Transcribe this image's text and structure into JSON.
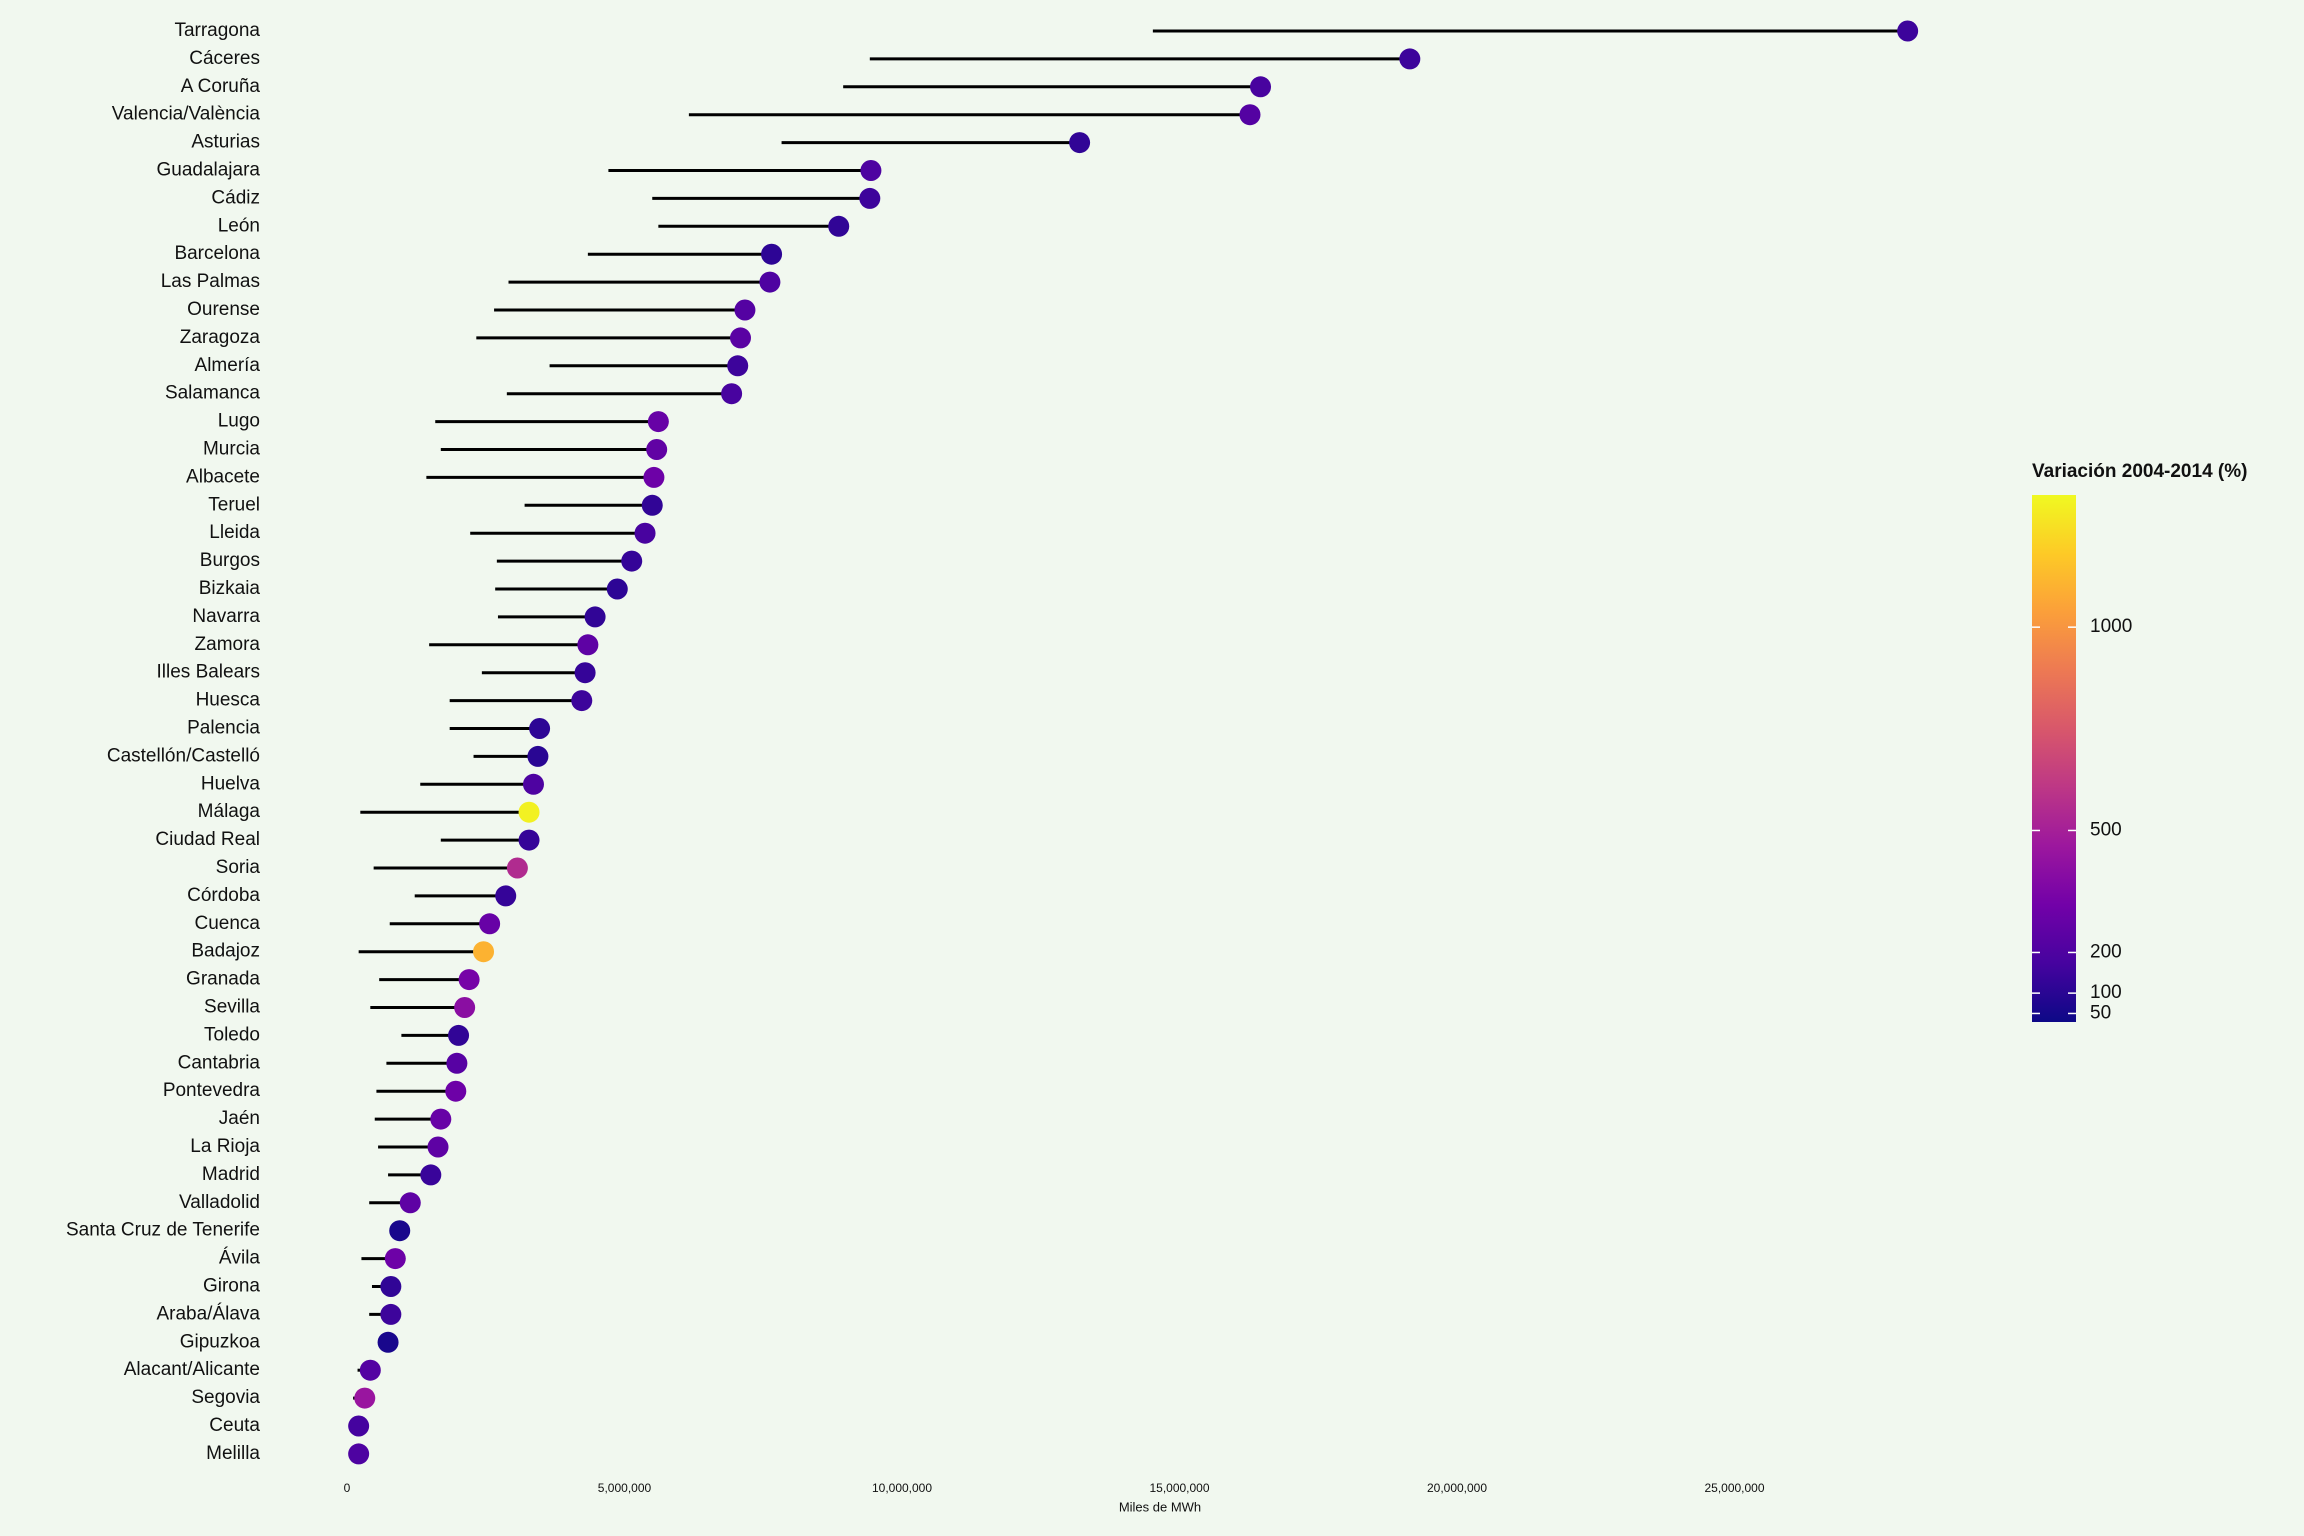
{
  "chart_data": {
    "type": "dumbbell",
    "x_label": "Miles de MWh",
    "categories": [
      "Tarragona",
      "Cáceres",
      "A Coruña",
      "Valencia/València",
      "Asturias",
      "Guadalajara",
      "Cádiz",
      "León",
      "Barcelona",
      "Las Palmas",
      "Ourense",
      "Zaragoza",
      "Almería",
      "Salamanca",
      "Lugo",
      "Murcia",
      "Albacete",
      "Teruel",
      "Lleida",
      "Burgos",
      "Bizkaia",
      "Navarra",
      "Zamora",
      "Illes Balears",
      "Huesca",
      "Palencia",
      "Castellón/Castelló",
      "Huelva",
      "Málaga",
      "Ciudad Real",
      "Soria",
      "Córdoba",
      "Cuenca",
      "Badajoz",
      "Granada",
      "Sevilla",
      "Toledo",
      "Cantabria",
      "Pontevedra",
      "Jaén",
      "La Rioja",
      "Madrid",
      "Valladolid",
      "Santa Cruz de Tenerife",
      "Ávila",
      "Girona",
      "Araba/Álava",
      "Gipuzkoa",
      "Alacant/Alicante",
      "Segovia",
      "Ceuta",
      "Melilla"
    ],
    "start": [
      14520000,
      9420000,
      8940000,
      6160000,
      7830000,
      4710000,
      5500000,
      5610000,
      4340000,
      2910000,
      2650000,
      2330000,
      3650000,
      2880000,
      1590000,
      1690000,
      1430000,
      3200000,
      2220000,
      2700000,
      2670000,
      2720000,
      1480000,
      2430000,
      1850000,
      1850000,
      2280000,
      1320000,
      240000,
      1690000,
      480000,
      1220000,
      770000,
      210000,
      580000,
      420000,
      980000,
      710000,
      530000,
      500000,
      560000,
      740000,
      400000,
      900000,
      260000,
      450000,
      400000,
      580000,
      190000,
      110000,
      210000,
      210000
    ],
    "end": [
      28120000,
      19150000,
      16460000,
      16270000,
      13200000,
      9440000,
      9420000,
      8860000,
      7650000,
      7620000,
      7170000,
      7090000,
      7040000,
      6930000,
      5610000,
      5580000,
      5530000,
      5500000,
      5370000,
      5130000,
      4870000,
      4470000,
      4340000,
      4290000,
      4230000,
      3470000,
      3440000,
      3360000,
      3280000,
      3280000,
      3070000,
      2860000,
      2570000,
      2460000,
      2200000,
      2120000,
      2010000,
      1980000,
      1960000,
      1690000,
      1640000,
      1510000,
      1140000,
      950000,
      870000,
      790000,
      790000,
      740000,
      420000,
      320000,
      210000,
      210000
    ],
    "variation": [
      150,
      150,
      180,
      220,
      120,
      200,
      150,
      120,
      110,
      200,
      220,
      240,
      150,
      180,
      280,
      260,
      300,
      120,
      180,
      130,
      110,
      120,
      250,
      130,
      150,
      110,
      100,
      200,
      1300,
      130,
      550,
      130,
      280,
      1100,
      330,
      400,
      120,
      230,
      300,
      280,
      250,
      140,
      250,
      60,
      300,
      120,
      150,
      60,
      220,
      450,
      170,
      200
    ],
    "line_color": "#000000",
    "xlim": [
      0,
      29000000
    ],
    "xticks": [
      0,
      {
        "value": 5000000,
        "label": "5,000,000"
      },
      {
        "value": 10000000,
        "label": "10,000,000"
      },
      {
        "value": 15000000,
        "label": "15,000,000"
      },
      {
        "value": 20000000,
        "label": "20,000,000"
      },
      {
        "value": 25000000,
        "label": "25,000,000"
      }
    ],
    "colorbar_title": "Variación 2004-2014 (%)",
    "colorbar_lim": [
      29,
      1325
    ],
    "colorbar_ticks": [
      50,
      100,
      200,
      500,
      1000
    ],
    "colormap": [
      "#0d0887",
      "#46039f",
      "#7201a8",
      "#9c179e",
      "#bd3786",
      "#d8576b",
      "#ed7953",
      "#fb9f3a",
      "#fdca26",
      "#f0f921"
    ]
  }
}
